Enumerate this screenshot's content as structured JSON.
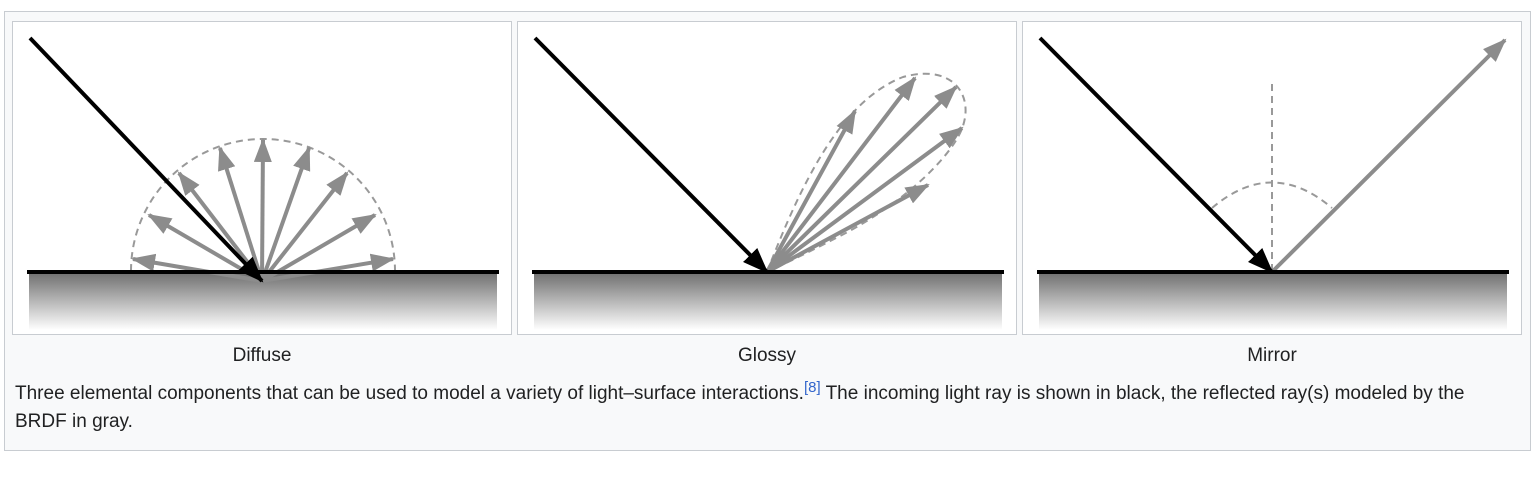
{
  "figures": [
    {
      "label": "Diffuse"
    },
    {
      "label": "Glossy"
    },
    {
      "label": "Mirror"
    }
  ],
  "caption": {
    "before": "Three elemental components that can be used to model a variety of light–surface interactions.",
    "citation": "[8]",
    "after": " The incoming light ray is shown in black, the reflected ray(s) modeled by the BRDF in gray."
  },
  "colors": {
    "incoming_ray": "#000000",
    "reflected_ray": "#8c8c8c",
    "lobe": "#999999",
    "citation_link": "#3366cc"
  }
}
